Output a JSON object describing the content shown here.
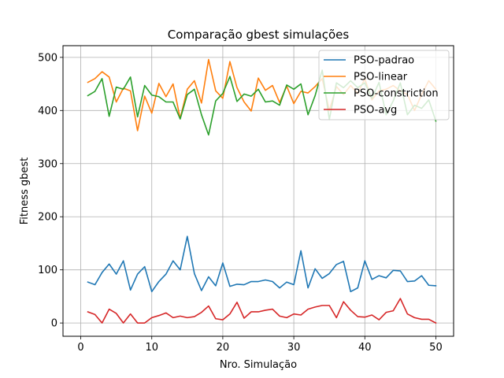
{
  "chart_data": {
    "type": "line",
    "title": "Comparação gbest simulações",
    "xlabel": "Nro. Simulação",
    "ylabel": "Fitness gbest",
    "xlim": [
      -2.5,
      52.5
    ],
    "ylim": [
      -25,
      522
    ],
    "xticks": [
      0,
      10,
      20,
      30,
      40,
      50
    ],
    "yticks": [
      0,
      100,
      200,
      300,
      400,
      500
    ],
    "grid": true,
    "legend_position": "top-right",
    "x": [
      1,
      2,
      3,
      4,
      5,
      6,
      7,
      8,
      9,
      10,
      11,
      12,
      13,
      14,
      15,
      16,
      17,
      18,
      19,
      20,
      21,
      22,
      23,
      24,
      25,
      26,
      27,
      28,
      29,
      30,
      31,
      32,
      33,
      34,
      35,
      36,
      37,
      38,
      39,
      40,
      41,
      42,
      43,
      44,
      45,
      46,
      47,
      48,
      49,
      50
    ],
    "series": [
      {
        "name": "PSO-padrao",
        "color": "#1f77b4",
        "values": [
          77,
          72,
          95,
          111,
          92,
          117,
          62,
          92,
          106,
          59,
          78,
          92,
          117,
          100,
          163,
          93,
          61,
          87,
          70,
          113,
          69,
          73,
          72,
          78,
          78,
          81,
          78,
          66,
          77,
          72,
          136,
          66,
          102,
          84,
          93,
          110,
          116,
          59,
          66,
          117,
          82,
          89,
          85,
          99,
          98,
          78,
          79,
          89,
          71,
          70
        ]
      },
      {
        "name": "PSO-linear",
        "color": "#ff7f0e",
        "values": [
          453,
          460,
          473,
          463,
          416,
          442,
          437,
          362,
          427,
          395,
          451,
          426,
          450,
          385,
          440,
          456,
          414,
          496,
          437,
          423,
          492,
          443,
          416,
          399,
          461,
          438,
          447,
          415,
          446,
          413,
          436,
          433,
          445,
          460,
          400,
          445,
          430,
          447,
          432,
          460,
          420,
          437,
          440,
          447,
          437,
          430,
          400,
          430,
          456,
          440
        ]
      },
      {
        "name": "PSO-constriction",
        "color": "#2ca02c",
        "values": [
          428,
          436,
          460,
          389,
          444,
          440,
          463,
          388,
          447,
          429,
          426,
          416,
          416,
          384,
          430,
          440,
          392,
          354,
          418,
          432,
          464,
          417,
          431,
          427,
          440,
          416,
          418,
          410,
          448,
          440,
          450,
          392,
          428,
          476,
          383,
          452,
          443,
          456,
          443,
          452,
          423,
          453,
          392,
          418,
          452,
          392,
          410,
          404,
          420,
          380
        ]
      },
      {
        "name": "PSO-avg",
        "color": "#d62728",
        "values": [
          21,
          16,
          0,
          26,
          18,
          0,
          17,
          0,
          0,
          10,
          14,
          19,
          10,
          13,
          10,
          12,
          20,
          32,
          8,
          6,
          17,
          39,
          9,
          21,
          21,
          24,
          26,
          13,
          10,
          17,
          15,
          26,
          30,
          33,
          33,
          10,
          40,
          24,
          12,
          11,
          15,
          6,
          20,
          23,
          46,
          17,
          10,
          7,
          7,
          0
        ]
      }
    ]
  }
}
